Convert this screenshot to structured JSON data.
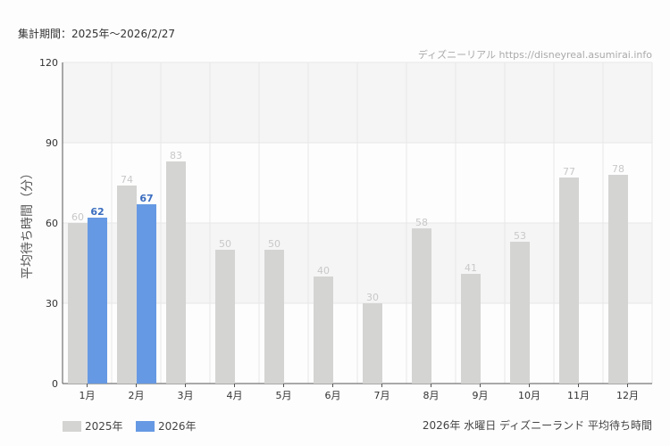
{
  "header": {
    "period": "集計期間：2025年～2026/2/27",
    "credit": "ディズニーリアル https://disneyreal.asumirai.info"
  },
  "caption": "2026年 水曜日 ディズニーランド 平均待ち時間",
  "chart_data": {
    "type": "bar",
    "ylabel": "平均待ち時間（分）",
    "ylim": [
      0,
      120
    ],
    "yticks": [
      0,
      30,
      60,
      90,
      120
    ],
    "grid": true,
    "legend": "bottom-left",
    "categories": [
      "1月",
      "2月",
      "3月",
      "4月",
      "5月",
      "6月",
      "7月",
      "8月",
      "9月",
      "10月",
      "11月",
      "12月"
    ],
    "series": [
      {
        "name": "2025年",
        "color": "#d4d5d3",
        "label_color": "#c8c8c8",
        "values": [
          60,
          74,
          83,
          50,
          50,
          40,
          30,
          58,
          41,
          53,
          77,
          78
        ]
      },
      {
        "name": "2026年",
        "color": "#6699e3",
        "label_color": "#3a6cc0",
        "values": [
          62,
          67,
          null,
          null,
          null,
          null,
          null,
          null,
          null,
          null,
          null,
          null
        ]
      }
    ]
  }
}
